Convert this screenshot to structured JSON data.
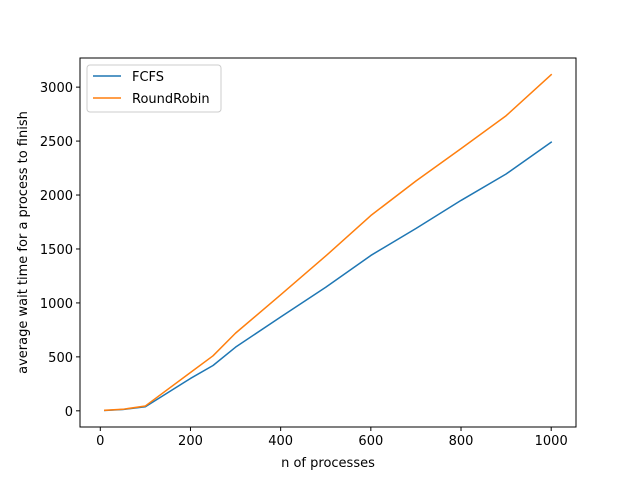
{
  "chart_data": {
    "type": "line",
    "title": "",
    "xlabel": "n of processes",
    "ylabel": "average wait time for a process to finish",
    "xlim": [
      -45,
      1055
    ],
    "ylim": [
      -150,
      3270
    ],
    "xticks": [
      0,
      200,
      400,
      600,
      800,
      1000
    ],
    "yticks": [
      0,
      500,
      1000,
      1500,
      2000,
      2500,
      3000
    ],
    "xtick_labels": [
      "0",
      "200",
      "400",
      "600",
      "800",
      "1000"
    ],
    "ytick_labels": [
      "0",
      "500",
      "1000",
      "1500",
      "2000",
      "2500",
      "3000"
    ],
    "grid": false,
    "legend_position": "top-left",
    "series": [
      {
        "name": "FCFS",
        "color": "#1f77b4",
        "x": [
          10,
          50,
          100,
          200,
          250,
          300,
          400,
          500,
          600,
          700,
          800,
          900,
          1000
        ],
        "y": [
          3,
          12,
          38,
          300,
          420,
          590,
          870,
          1145,
          1440,
          1690,
          1950,
          2195,
          2490
        ]
      },
      {
        "name": "RoundRobin",
        "color": "#ff7f0e",
        "x": [
          10,
          50,
          100,
          200,
          250,
          300,
          400,
          500,
          600,
          700,
          800,
          900,
          1000
        ],
        "y": [
          5,
          14,
          45,
          355,
          510,
          720,
          1075,
          1435,
          1810,
          2130,
          2430,
          2735,
          3115
        ]
      }
    ]
  }
}
